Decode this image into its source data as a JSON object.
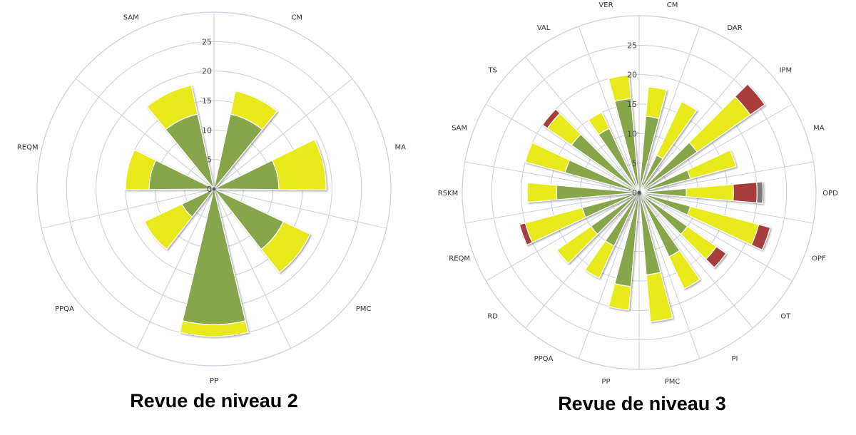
{
  "colors": {
    "green": "#87a64b",
    "yellow": "#e8ea1f",
    "red": "#a83e3e",
    "gray": "#7a7a7a",
    "grid": "#c8d0da"
  },
  "chart_data": [
    {
      "type": "polar-stacked-bar",
      "title": "Revue de niveau 2",
      "radial_axis": {
        "min": 0,
        "max": 30,
        "tick_labels": [
          "0",
          "5",
          "10",
          "15",
          "20",
          "25"
        ]
      },
      "categories": [
        "CM",
        "MA",
        "PMC",
        "PP",
        "PPQA",
        "REQM",
        "SAM"
      ],
      "series": [
        {
          "color": "green",
          "values": [
            13,
            11,
            13,
            23,
            6,
            11,
            13
          ]
        },
        {
          "color": "yellow",
          "values": [
            4,
            8,
            5,
            2,
            7,
            4,
            5
          ]
        }
      ]
    },
    {
      "type": "polar-stacked-bar",
      "title": "Revue de niveau 3",
      "radial_axis": {
        "min": 0,
        "max": 30,
        "tick_labels": [
          "0",
          "5",
          "10",
          "15",
          "20",
          "25"
        ]
      },
      "categories": [
        "CM",
        "DAR",
        "IPM",
        "MA",
        "OPD",
        "OPF",
        "OT",
        "PI",
        "PMC",
        "PP",
        "PPQA",
        "RD",
        "REQM",
        "RSKM",
        "SAM",
        "TS",
        "VAL",
        "VER"
      ],
      "series": [
        {
          "color": "green",
          "values": [
            13,
            7,
            12,
            9,
            8,
            9,
            10,
            12,
            14,
            16,
            10,
            10,
            10,
            14,
            13,
            14,
            12,
            16
          ]
        },
        {
          "color": "yellow",
          "values": [
            5,
            10,
            11,
            8,
            8,
            12,
            6,
            6,
            8,
            4,
            6,
            7,
            10,
            5,
            7,
            5,
            3,
            4
          ]
        },
        {
          "color": "red",
          "values": [
            0,
            0,
            3,
            0,
            4,
            2,
            2,
            0,
            0,
            0,
            0,
            0,
            1,
            0,
            0,
            1,
            0,
            0
          ]
        },
        {
          "color": "gray",
          "values": [
            0,
            0,
            0,
            0,
            1,
            0,
            0,
            0,
            0,
            0,
            0,
            0,
            0,
            0,
            0,
            0,
            0,
            0
          ]
        }
      ]
    }
  ]
}
